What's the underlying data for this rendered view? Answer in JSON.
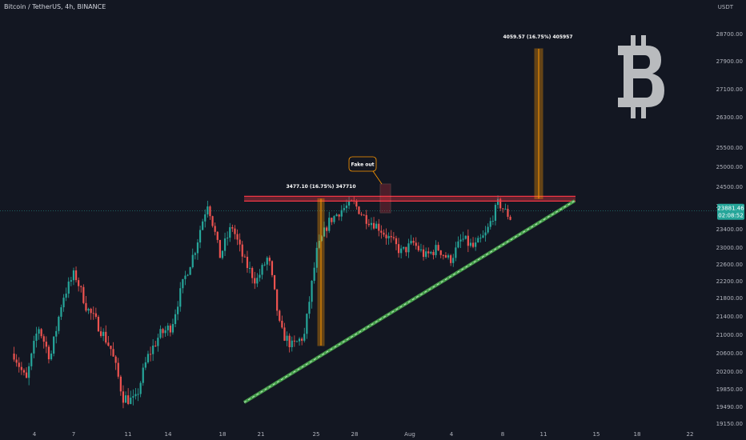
{
  "header": {
    "symbol": "Bitcoin / TetherUS, 4h, BINANCE",
    "currency": "USDT"
  },
  "colors": {
    "background": "#131722",
    "up": "#26a69a",
    "down": "#ef5350",
    "resistance": "#f23645",
    "support": "#4caf50",
    "measure": "#ff9800",
    "price_line": "#26a69a",
    "logo": "#b9bbbe"
  },
  "chart_data": {
    "type": "candlestick",
    "y_ticks": [
      "28700.00",
      "27900.00",
      "27100.00",
      "26300.00",
      "25500.00",
      "25000.00",
      "24500.00",
      "24000.00",
      "23400.00",
      "23000.00",
      "22600.00",
      "22200.00",
      "21800.00",
      "21400.00",
      "21000.00",
      "20600.00",
      "20200.00",
      "19850.00",
      "19490.00",
      "19150.00"
    ],
    "x_ticks": [
      "4",
      "7",
      "11",
      "14",
      "18",
      "21",
      "25",
      "28",
      "Aug",
      "4",
      "8",
      "11",
      "15",
      "18",
      "22"
    ],
    "current_price": {
      "value": "23881.46",
      "countdown": "02:08:52"
    },
    "resistance_level": 24200,
    "annotations": {
      "measure_left": "3477.10 (16.75%) 347710",
      "measure_right": "4059.57 (16.75%) 405957",
      "fakeout": "Fake out"
    },
    "anchors": [
      [
        0,
        20600
      ],
      [
        1,
        20000
      ],
      [
        2,
        21200
      ],
      [
        3,
        20500
      ],
      [
        4,
        21800
      ],
      [
        5,
        22400
      ],
      [
        6,
        21600
      ],
      [
        7,
        21200
      ],
      [
        8,
        20700
      ],
      [
        9,
        19700
      ],
      [
        10,
        19600
      ],
      [
        11,
        20500
      ],
      [
        12,
        21000
      ],
      [
        13,
        21200
      ],
      [
        14,
        22200
      ],
      [
        15,
        23000
      ],
      [
        16,
        24100
      ],
      [
        17,
        22800
      ],
      [
        18,
        23500
      ],
      [
        19,
        22700
      ],
      [
        20,
        22200
      ],
      [
        21,
        22800
      ],
      [
        22,
        21100
      ],
      [
        23,
        20750
      ],
      [
        24,
        21000
      ],
      [
        25,
        22900
      ],
      [
        26,
        23600
      ],
      [
        27,
        23900
      ],
      [
        28,
        24100
      ],
      [
        29,
        23700
      ],
      [
        30,
        23500
      ],
      [
        31,
        23200
      ],
      [
        32,
        22900
      ],
      [
        33,
        23100
      ],
      [
        34,
        22800
      ],
      [
        35,
        23000
      ],
      [
        36,
        22700
      ],
      [
        37,
        23200
      ],
      [
        38,
        23000
      ],
      [
        39,
        23300
      ],
      [
        40,
        24100
      ],
      [
        41,
        23700
      ]
    ]
  }
}
